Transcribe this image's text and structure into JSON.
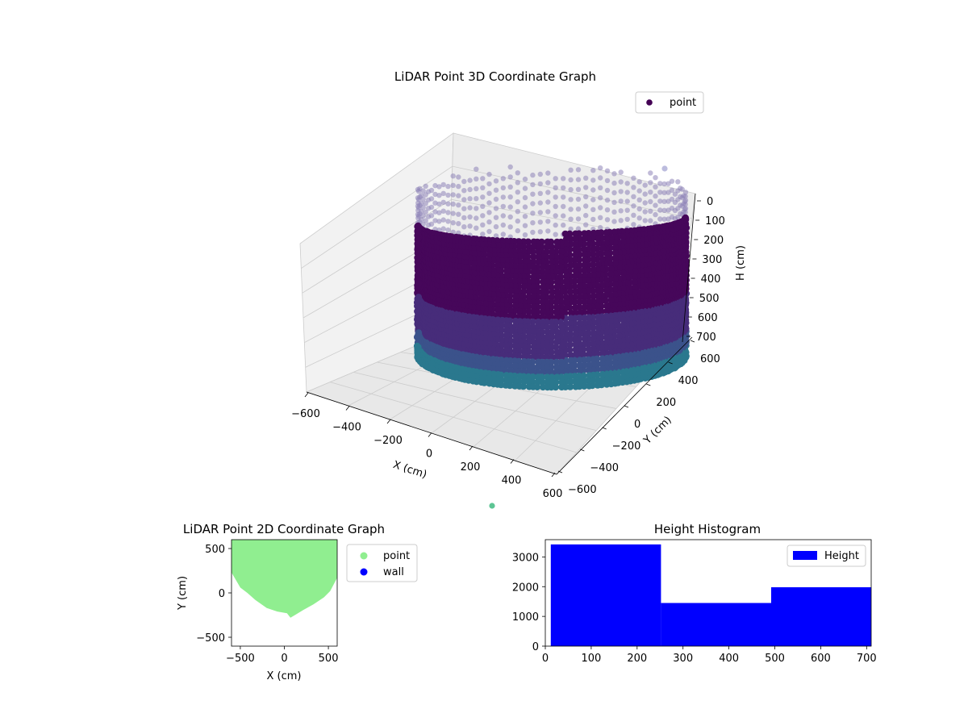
{
  "colors": {
    "point3d": "#440154",
    "wall_top": "#46075a",
    "wall_mid": "#3b528b",
    "wall_low": "#2a788e",
    "point2d": "#90ee90",
    "wall2d": "#0000ff",
    "hist": "#0000ff",
    "pane": "#f2f2f2",
    "grid": "#cccccc"
  },
  "chart_data": [
    {
      "type": "scatter",
      "kind": "3d",
      "title": "LiDAR Point 3D Coordinate Graph",
      "xlabel": "X (cm)",
      "ylabel": "Y (cm)",
      "zlabel": "H (cm)",
      "xlim": [
        -600,
        600
      ],
      "ylim": [
        -600,
        600
      ],
      "zlim": [
        0,
        700
      ],
      "z_inverted": true,
      "x_ticks": [
        "−600",
        "−400",
        "−200",
        "0",
        "200",
        "400",
        "600"
      ],
      "y_ticks": [
        "−600",
        "−400",
        "−200",
        "0",
        "200",
        "400",
        "600"
      ],
      "z_ticks": [
        "0",
        "100",
        "200",
        "300",
        "400",
        "500",
        "600",
        "700"
      ],
      "series": [
        {
          "name": "point"
        }
      ],
      "legend": "top-right",
      "grid": true,
      "colormap": "viridis"
    },
    {
      "type": "scatter",
      "title": "LiDAR Point 2D Coordinate Graph",
      "xlabel": "X (cm)",
      "ylabel": "Y (cm)",
      "xlim": [
        -600,
        600
      ],
      "ylim": [
        -600,
        600
      ],
      "x_ticks": [
        "−500",
        "0",
        "500"
      ],
      "y_ticks": [
        "−500",
        "0",
        "500"
      ],
      "series": [
        {
          "name": "point"
        },
        {
          "name": "wall"
        }
      ],
      "legend": "outside-right"
    },
    {
      "type": "bar",
      "title": "Height Histogram",
      "xlabel": "",
      "ylabel": "",
      "xlim": [
        0,
        710
      ],
      "ylim": [
        0,
        3580
      ],
      "x_ticks": [
        "0",
        "100",
        "200",
        "300",
        "400",
        "500",
        "600",
        "700"
      ],
      "y_ticks": [
        "0",
        "1000",
        "2000",
        "3000"
      ],
      "bins": [
        {
          "start": 12,
          "end": 252,
          "count": 3420
        },
        {
          "start": 252,
          "end": 492,
          "count": 1450
        },
        {
          "start": 492,
          "end": 710,
          "count": 1980
        }
      ],
      "series": [
        {
          "name": "Height"
        }
      ],
      "legend": "top-right"
    }
  ]
}
